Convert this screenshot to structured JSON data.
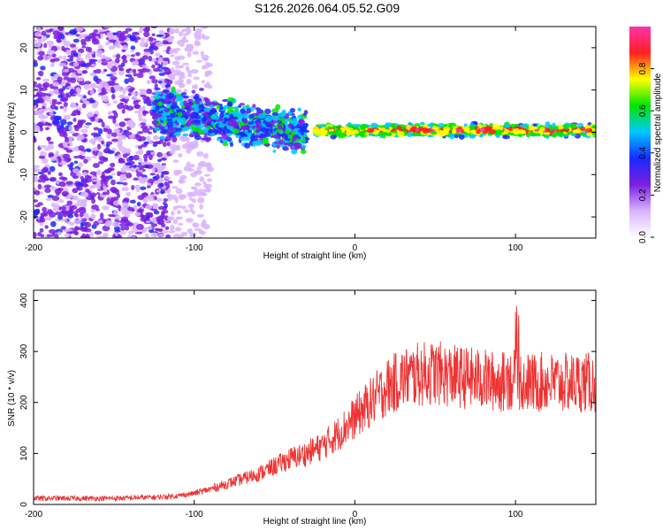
{
  "title": "S126.2026.064.05.52.G09",
  "chart_data": [
    {
      "id": "spectrogram",
      "type": "heatmap",
      "xlabel": "Height of straight line (km)",
      "ylabel": "Frequency (Hz)",
      "xlim": [
        -200,
        150
      ],
      "ylim": [
        -25,
        25
      ],
      "xticks": [
        -200,
        -100,
        0,
        100
      ],
      "yticks": [
        -20,
        -10,
        0,
        10,
        20
      ],
      "colorbar": {
        "label": "Normalized spectral amplitude",
        "range": [
          0,
          1
        ],
        "ticks": [
          "0.0",
          "0.2",
          "0.4",
          "0.6",
          "0.8"
        ],
        "colors": [
          "#ffffff",
          "#d9b3ff",
          "#7a1fe0",
          "#1a2aff",
          "#00c8ff",
          "#00e600",
          "#ffff00",
          "#ff2020",
          "#ff33aa"
        ]
      },
      "regions": [
        {
          "name": "noise",
          "x": [
            -200,
            -115
          ],
          "freq_range": [
            -25,
            25
          ],
          "amplitude": 0.2
        },
        {
          "name": "broad signal",
          "x": [
            -125,
            -30
          ],
          "freq_center": [
            5,
            0
          ],
          "freq_halfwidth": [
            5,
            4
          ],
          "amplitude": 0.4
        },
        {
          "name": "tracked line",
          "x": [
            -25,
            150
          ],
          "freq_center": 0.5,
          "freq_halfwidth": 1.5,
          "amplitude": 0.7
        }
      ]
    },
    {
      "id": "snr",
      "type": "line",
      "xlabel": "Height of straight line (km)",
      "ylabel": "SNR (10 * v/v)",
      "xlim": [
        -200,
        150
      ],
      "ylim": [
        0,
        420
      ],
      "xticks": [
        -200,
        -100,
        0,
        100
      ],
      "yticks": [
        0,
        100,
        200,
        300,
        400
      ],
      "color": "#ee3333",
      "series": [
        {
          "name": "SNR",
          "x": [
            -200,
            -175,
            -150,
            -125,
            -110,
            -100,
            -90,
            -80,
            -70,
            -60,
            -50,
            -40,
            -30,
            -20,
            -10,
            0,
            10,
            20,
            30,
            40,
            50,
            60,
            70,
            80,
            90,
            100,
            110,
            120,
            130,
            140,
            150
          ],
          "y": [
            12,
            12,
            12,
            14,
            17,
            22,
            30,
            40,
            50,
            60,
            75,
            90,
            100,
            115,
            140,
            170,
            200,
            230,
            248,
            255,
            258,
            252,
            248,
            245,
            240,
            245,
            238,
            240,
            238,
            240,
            238
          ]
        }
      ]
    }
  ]
}
